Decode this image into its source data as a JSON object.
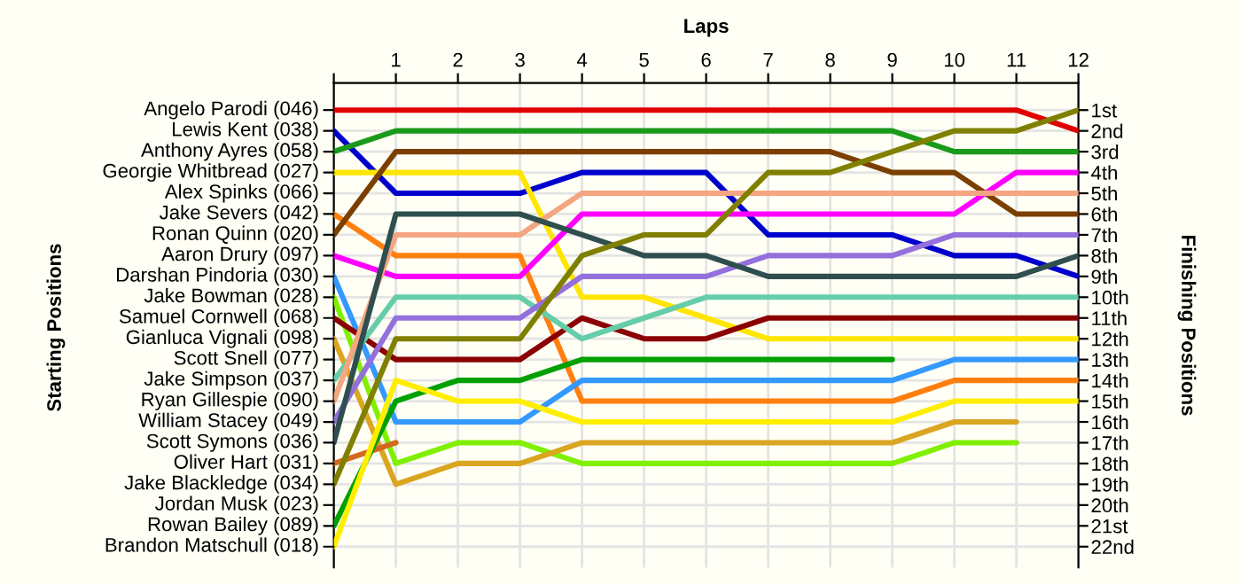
{
  "chart_data": {
    "type": "line",
    "xlabel": "Laps",
    "ylabel": "Finishing Positions",
    "x": [
      0,
      1,
      2,
      3,
      4,
      5,
      6,
      7,
      8,
      9,
      10,
      11,
      12
    ],
    "xlim": [
      0,
      12
    ],
    "xticks": [
      {
        "value": 0,
        "label": null
      },
      1,
      2,
      3,
      4,
      5,
      6,
      7,
      8,
      9,
      10,
      11,
      12
    ],
    "ylim": [
      23,
      -0.3
    ],
    "yticks": [
      {
        "value": 1,
        "label": "1st"
      },
      {
        "value": 2,
        "label": "2nd"
      },
      {
        "value": 3,
        "label": "3rd"
      },
      {
        "value": 4,
        "label": "4th"
      },
      {
        "value": 5,
        "label": "5th"
      },
      {
        "value": 6,
        "label": "6th"
      },
      {
        "value": 7,
        "label": "7th"
      },
      {
        "value": 8,
        "label": "8th"
      },
      {
        "value": 9,
        "label": "9th"
      },
      {
        "value": 10,
        "label": "10th"
      },
      {
        "value": 11,
        "label": "11th"
      },
      {
        "value": 12,
        "label": "12th"
      },
      {
        "value": 13,
        "label": "13th"
      },
      {
        "value": 14,
        "label": "14th"
      },
      {
        "value": 15,
        "label": "15th"
      },
      {
        "value": 16,
        "label": "16th"
      },
      {
        "value": 17,
        "label": "17th"
      },
      {
        "value": 18,
        "label": "18th"
      },
      {
        "value": 19,
        "label": "19th"
      },
      {
        "value": 20,
        "label": "20th"
      },
      {
        "value": 21,
        "label": "21st"
      },
      {
        "value": 22,
        "label": "22nd"
      }
    ],
    "annotations": [
      "Starting Positions",
      "Angelo Parodi (046)",
      "Lewis Kent (038)",
      "Anthony Ayres (058)",
      "Georgie Whitbread (027)",
      "Alex Spinks (066)",
      "Jake Severs (042)",
      "Ronan Quinn (020)",
      "Aaron Drury (097)",
      "Darshan Pindoria (030)",
      "Jake Bowman (028)",
      "Samuel Cornwell (068)",
      "Gianluca Vignali (098)",
      "Scott Snell (077)",
      "Jake Simpson (037)",
      "Ryan Gillespie (090)",
      "William Stacey (049)",
      "Scott Symons (036)",
      "Oliver Hart (031)",
      "Jake Blackledge (034)",
      "Jordan Musk (023)",
      "Rowan Bailey (089)",
      "Brandon Matschull (018)"
    ],
    "grid": true,
    "series": [
      {
        "color": "#e00000",
        "values": [
          1,
          1,
          1,
          1,
          1,
          1,
          1,
          1,
          1,
          1,
          1,
          1,
          2
        ]
      },
      {
        "color": "#0000cc",
        "values": [
          2,
          5,
          5,
          5,
          4,
          4,
          4,
          7,
          7,
          7,
          8,
          8,
          9
        ]
      },
      {
        "color": "#1a9a1a",
        "values": [
          3,
          2,
          2,
          2,
          2,
          2,
          2,
          2,
          2,
          2,
          3,
          3,
          3
        ]
      },
      {
        "color": "#ffe600",
        "values": [
          4,
          4,
          4,
          4,
          10,
          10,
          11,
          12,
          12,
          12,
          12,
          12,
          12
        ]
      },
      {
        "color": "#ff7f0e",
        "values": [
          6,
          8,
          8,
          8,
          15,
          15,
          15,
          15,
          15,
          15,
          14,
          14,
          14
        ]
      },
      {
        "color": "#7b3f00",
        "values": [
          7,
          3,
          3,
          3,
          3,
          3,
          3,
          3,
          3,
          4,
          4,
          6,
          6
        ]
      },
      {
        "color": "#ff00ff",
        "values": [
          8,
          9,
          9,
          9,
          6,
          6,
          6,
          6,
          6,
          6,
          6,
          4,
          4
        ]
      },
      {
        "color": "#3399ff",
        "values": [
          9,
          16,
          16,
          16,
          14,
          14,
          14,
          14,
          14,
          14,
          13,
          13,
          13
        ]
      },
      {
        "color": "#80f000",
        "values": [
          10,
          18,
          17,
          17,
          18,
          18,
          18,
          18,
          18,
          18,
          17,
          17,
          null
        ]
      },
      {
        "color": "#8b0000",
        "values": [
          11,
          13,
          13,
          13,
          11,
          12,
          12,
          11,
          11,
          11,
          11,
          11,
          11
        ]
      },
      {
        "color": "#daa520",
        "values": [
          12,
          19,
          18,
          18,
          17,
          17,
          17,
          17,
          17,
          17,
          16,
          16,
          null
        ]
      },
      {
        "color": "#66cdaa",
        "values": [
          14,
          10,
          10,
          10,
          12,
          11,
          10,
          10,
          10,
          10,
          10,
          10,
          10
        ]
      },
      {
        "color": "#f4a582",
        "values": [
          15,
          7,
          7,
          7,
          5,
          5,
          5,
          5,
          5,
          5,
          5,
          5,
          5
        ]
      },
      {
        "color": "#9370db",
        "values": [
          16,
          11,
          11,
          11,
          9,
          9,
          9,
          8,
          8,
          8,
          7,
          7,
          7
        ]
      },
      {
        "color": "#2f4f4f",
        "values": [
          17,
          6,
          6,
          6,
          7,
          8,
          8,
          9,
          9,
          9,
          9,
          9,
          8
        ]
      },
      {
        "color": "#d2691e",
        "values": [
          18,
          17,
          null,
          null,
          null,
          null,
          null,
          null,
          null,
          null,
          null,
          null,
          null
        ]
      },
      {
        "color": "#808000",
        "values": [
          19,
          12,
          12,
          12,
          8,
          7,
          7,
          4,
          4,
          3,
          2,
          2,
          1
        ]
      },
      {
        "color": "#00a000",
        "values": [
          21,
          15,
          14,
          14,
          13,
          13,
          13,
          13,
          13,
          13,
          null,
          null,
          null
        ]
      },
      {
        "color": "#ffee00",
        "values": [
          22,
          14,
          15,
          15,
          16,
          16,
          16,
          16,
          16,
          16,
          15,
          15,
          15
        ]
      }
    ]
  }
}
